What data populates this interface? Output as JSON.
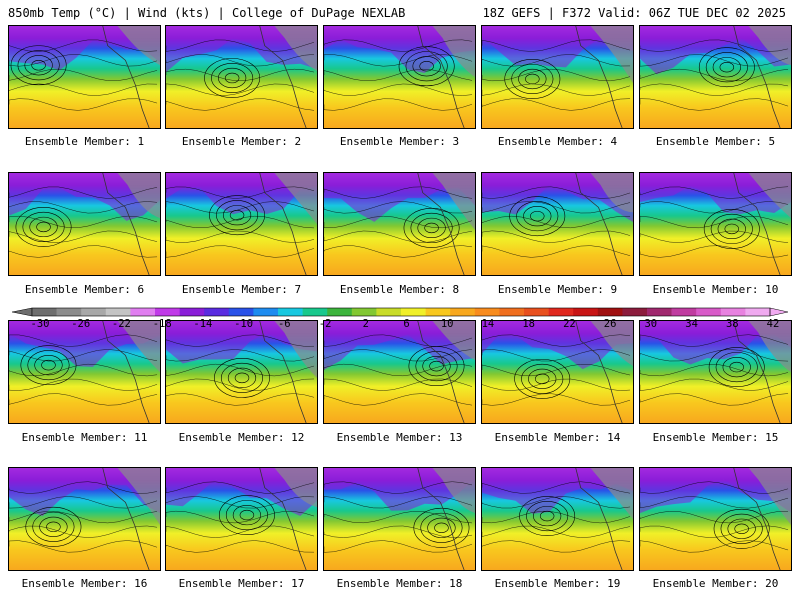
{
  "header": {
    "left_title": "850mb Temp (°C) | Wind (kts) | College of DuPage NEXLAB",
    "right_title": "18Z GEFS | F372 Valid: 06Z TUE DEC 02 2025"
  },
  "panels": [
    {
      "label": "Ensemble Member: 1"
    },
    {
      "label": "Ensemble Member: 2"
    },
    {
      "label": "Ensemble Member: 3"
    },
    {
      "label": "Ensemble Member: 4"
    },
    {
      "label": "Ensemble Member: 5"
    },
    {
      "label": "Ensemble Member: 6"
    },
    {
      "label": "Ensemble Member: 7"
    },
    {
      "label": "Ensemble Member: 8"
    },
    {
      "label": "Ensemble Member: 9"
    },
    {
      "label": "Ensemble Member: 10"
    },
    {
      "label": "Ensemble Member: 11"
    },
    {
      "label": "Ensemble Member: 12"
    },
    {
      "label": "Ensemble Member: 13"
    },
    {
      "label": "Ensemble Member: 14"
    },
    {
      "label": "Ensemble Member: 15"
    },
    {
      "label": "Ensemble Member: 16"
    },
    {
      "label": "Ensemble Member: 17"
    },
    {
      "label": "Ensemble Member: 18"
    },
    {
      "label": "Ensemble Member: 19"
    },
    {
      "label": "Ensemble Member: 20"
    }
  ],
  "colorbar": {
    "ticks": [
      "-30",
      "-26",
      "-22",
      "-18",
      "-14",
      "-10",
      "-6",
      "-2",
      "2",
      "6",
      "10",
      "14",
      "18",
      "22",
      "26",
      "30",
      "34",
      "38",
      "42"
    ],
    "colors": [
      "#6e6e6e",
      "#8c8c8c",
      "#a8a8a8",
      "#c4c4c4",
      "#e07ef0",
      "#c03ae8",
      "#8a1ed8",
      "#5a2ce0",
      "#2a52e8",
      "#1e8cf0",
      "#18c8e0",
      "#18c88c",
      "#3cb43c",
      "#82c832",
      "#c8dc28",
      "#f0f028",
      "#f8c81e",
      "#f8a81e",
      "#f88c1e",
      "#f06e1e",
      "#e8501e",
      "#e0281e",
      "#c81414",
      "#a01010",
      "#8c1c3c",
      "#a0286e",
      "#c03ca0",
      "#d85ac8",
      "#e882e0",
      "#f0aaf0"
    ]
  }
}
